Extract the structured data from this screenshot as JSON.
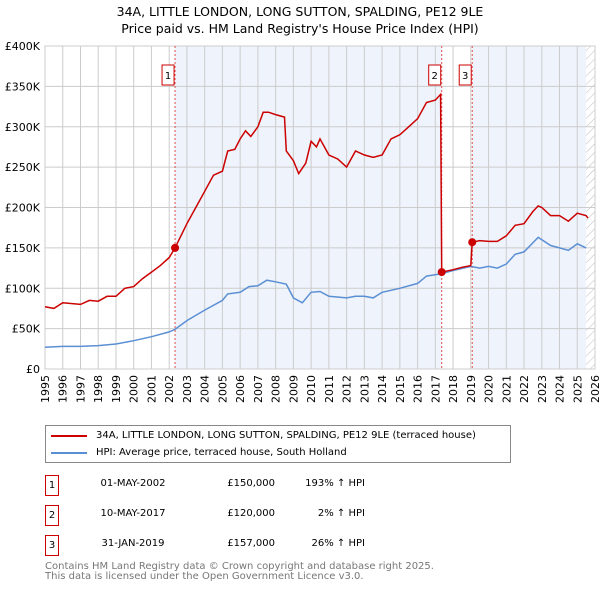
{
  "chart_data": {
    "type": "line",
    "title": "34A, LITTLE LONDON, LONG SUTTON, SPALDING, PE12 9LE",
    "subtitle": "Price paid vs. HM Land Registry's House Price Index (HPI)",
    "xlim": [
      1995,
      2026
    ],
    "ylim": [
      0,
      400000
    ],
    "x_ticks": [
      "1995",
      "1996",
      "1997",
      "1998",
      "1999",
      "2000",
      "2001",
      "2002",
      "2003",
      "2004",
      "2005",
      "2006",
      "2007",
      "2008",
      "2009",
      "2010",
      "2011",
      "2012",
      "2013",
      "2014",
      "2015",
      "2016",
      "2017",
      "2018",
      "2019",
      "2020",
      "2021",
      "2022",
      "2023",
      "2024",
      "2025",
      "2026"
    ],
    "y_ticks": [
      {
        "v": 0,
        "label": "£0"
      },
      {
        "v": 50000,
        "label": "£50K"
      },
      {
        "v": 100000,
        "label": "£100K"
      },
      {
        "v": 150000,
        "label": "£150K"
      },
      {
        "v": 200000,
        "label": "£200K"
      },
      {
        "v": 250000,
        "label": "£250K"
      },
      {
        "v": 300000,
        "label": "£300K"
      },
      {
        "v": 350000,
        "label": "£350K"
      },
      {
        "v": 400000,
        "label": "£400K"
      }
    ],
    "grid": true,
    "series": [
      {
        "name": "34A, LITTLE LONDON, LONG SUTTON, SPALDING, PE12 9LE (terraced house)",
        "color": "#cc0000",
        "x": [
          1995,
          1995.5,
          1996,
          1997,
          1997.5,
          1998,
          1998.5,
          1999,
          1999.5,
          2000,
          2000.5,
          2001,
          2001.5,
          2002,
          2002.33,
          2003,
          2003.5,
          2004,
          2004.5,
          2005,
          2005.3,
          2005.7,
          2006,
          2006.3,
          2006.6,
          2007,
          2007.3,
          2007.6,
          2008,
          2008.5,
          2008.6,
          2009,
          2009.3,
          2009.7,
          2010,
          2010.3,
          2010.5,
          2011,
          2011.5,
          2012,
          2012.5,
          2013,
          2013.5,
          2014,
          2014.5,
          2015,
          2015.5,
          2016,
          2016.5,
          2017,
          2017.3,
          2017.36,
          2018,
          2018.5,
          2019,
          2019.08,
          2019.5,
          2020,
          2020.5,
          2021,
          2021.5,
          2022,
          2022.5,
          2022.8,
          2023,
          2023.5,
          2024,
          2024.5,
          2025,
          2025.5,
          2025.6
        ],
        "y": [
          77000,
          75000,
          82000,
          80000,
          85000,
          84000,
          90000,
          90000,
          100000,
          102000,
          112000,
          120000,
          128000,
          138000,
          150000,
          180000,
          200000,
          220000,
          240000,
          245000,
          270000,
          272000,
          285000,
          295000,
          288000,
          300000,
          318000,
          318000,
          315000,
          312000,
          270000,
          258000,
          242000,
          255000,
          282000,
          275000,
          285000,
          265000,
          260000,
          250000,
          270000,
          265000,
          262000,
          265000,
          285000,
          290000,
          300000,
          310000,
          330000,
          333000,
          340000,
          120000,
          123000,
          126000,
          128000,
          157000,
          159000,
          158000,
          158000,
          165000,
          178000,
          180000,
          195000,
          202000,
          200000,
          190000,
          190000,
          183000,
          193000,
          190000,
          187000
        ]
      },
      {
        "name": "HPI: Average price, terraced house, South Holland",
        "color": "#5b8fd4",
        "x": [
          1995,
          1996,
          1997,
          1998,
          1999,
          2000,
          2001,
          2002,
          2002.33,
          2003,
          2004,
          2005,
          2005.3,
          2006,
          2006.5,
          2007,
          2007.5,
          2008,
          2008.6,
          2009,
          2009.5,
          2010,
          2010.5,
          2011,
          2012,
          2012.5,
          2013,
          2013.5,
          2014,
          2015,
          2016,
          2016.5,
          2017.36,
          2018,
          2019,
          2019.5,
          2020,
          2020.5,
          2021,
          2021.5,
          2022,
          2022.8,
          2023.5,
          2024,
          2024.5,
          2025,
          2025.5
        ],
        "y": [
          27000,
          28000,
          28000,
          29000,
          31000,
          35000,
          40000,
          46000,
          49000,
          60000,
          73000,
          85000,
          93000,
          95000,
          102000,
          103000,
          110000,
          108000,
          105000,
          88000,
          82000,
          95000,
          96000,
          90000,
          88000,
          90000,
          90000,
          88000,
          95000,
          100000,
          106000,
          115000,
          118000,
          122000,
          127000,
          125000,
          127000,
          125000,
          130000,
          142000,
          145000,
          163000,
          153000,
          150000,
          147000,
          155000,
          150000
        ]
      }
    ],
    "sales": [
      {
        "num": "1",
        "x": 2002.33,
        "y": 150000,
        "date": "01-MAY-2002",
        "price": "£150,000",
        "hpi": "193% ↑ HPI"
      },
      {
        "num": "2",
        "x": 2017.36,
        "y": 120000,
        "date": "10-MAY-2017",
        "price": "£120,000",
        "hpi": "2% ↑ HPI"
      },
      {
        "num": "3",
        "x": 2019.08,
        "y": 157000,
        "date": "31-JAN-2019",
        "price": "£157,000",
        "hpi": "26% ↑ HPI"
      }
    ],
    "shaded_ranges": [
      [
        2002.33,
        2017.36
      ],
      [
        2019.08,
        2025.5
      ]
    ],
    "hatched_from": 2025.5,
    "legend_placement": "below"
  },
  "footer": [
    "Contains HM Land Registry data © Crown copyright and database right 2025.",
    "This data is licensed under the Open Government Licence v3.0."
  ]
}
